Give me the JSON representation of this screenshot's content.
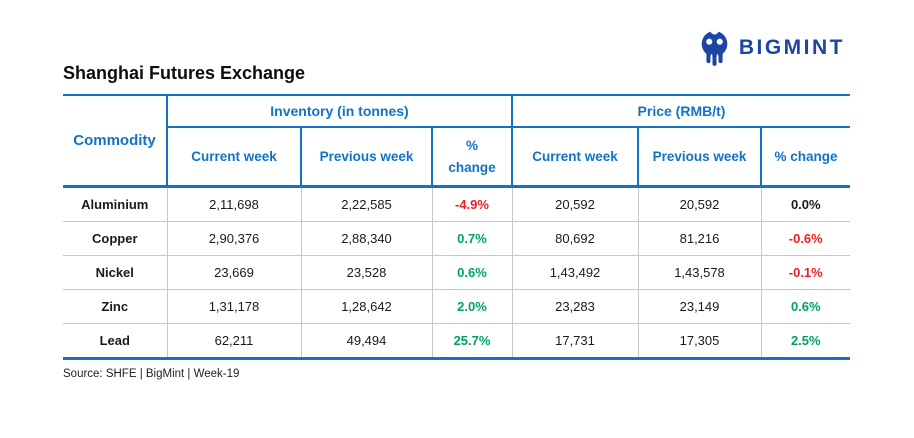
{
  "brand": {
    "name": "BIGMINT"
  },
  "title": "Shanghai Futures Exchange",
  "table": {
    "commodity_header": "Commodity",
    "groups": [
      {
        "label": "Inventory (in tonnes)"
      },
      {
        "label": "Price (RMB/t)"
      }
    ],
    "subheaders": {
      "inventory_current": "Current week",
      "inventory_previous": "Previous week",
      "inventory_change": "%\nchange",
      "price_current": "Current week",
      "price_previous": "Previous week",
      "price_change": "% change"
    },
    "rows": [
      {
        "commodity": "Aluminium",
        "inventory": {
          "current": "2,11,698",
          "previous": "2,22,585",
          "change": "-4.9%",
          "change_tone": "negative"
        },
        "price": {
          "current": "20,592",
          "previous": "20,592",
          "change": "0.0%",
          "change_tone": "neutral"
        }
      },
      {
        "commodity": "Copper",
        "inventory": {
          "current": "2,90,376",
          "previous": "2,88,340",
          "change": "0.7%",
          "change_tone": "positive"
        },
        "price": {
          "current": "80,692",
          "previous": "81,216",
          "change": "-0.6%",
          "change_tone": "negative"
        }
      },
      {
        "commodity": "Nickel",
        "inventory": {
          "current": "23,669",
          "previous": "23,528",
          "change": "0.6%",
          "change_tone": "positive"
        },
        "price": {
          "current": "1,43,492",
          "previous": "1,43,578",
          "change": "-0.1%",
          "change_tone": "negative"
        }
      },
      {
        "commodity": "Zinc",
        "inventory": {
          "current": "1,31,178",
          "previous": "1,28,642",
          "change": "2.0%",
          "change_tone": "positive"
        },
        "price": {
          "current": "23,283",
          "previous": "23,149",
          "change": "0.6%",
          "change_tone": "positive"
        }
      },
      {
        "commodity": "Lead",
        "inventory": {
          "current": "62,211",
          "previous": "49,494",
          "change": "25.7%",
          "change_tone": "positive"
        },
        "price": {
          "current": "17,731",
          "previous": "17,305",
          "change": "2.5%",
          "change_tone": "positive"
        }
      }
    ]
  },
  "footer": {
    "source": "Source: SHFE | BigMint | Week-19"
  },
  "colors": {
    "header_blue": "#1273c6",
    "border_blue": "#1273c6",
    "row_divider_gray": "#c7c7c7",
    "brand_navy": "#1c45a4",
    "positive_green": "#00a45d",
    "negative_red": "#ee1c25",
    "neutral_black": "#1a1a1a"
  },
  "chart_data": {
    "type": "table",
    "title": "Shanghai Futures Exchange",
    "column_groups": [
      "Inventory (in tonnes)",
      "Price (RMB/t)"
    ],
    "columns": [
      "Commodity",
      "Inventory Current week",
      "Inventory Previous week",
      "Inventory % change",
      "Price Current week",
      "Price Previous week",
      "Price % change"
    ],
    "rows": [
      [
        "Aluminium",
        211698,
        222585,
        -4.9,
        20592,
        20592,
        0.0
      ],
      [
        "Copper",
        290376,
        288340,
        0.7,
        80692,
        81216,
        -0.6
      ],
      [
        "Nickel",
        23669,
        23528,
        0.6,
        143492,
        143578,
        -0.1
      ],
      [
        "Zinc",
        131178,
        128642,
        2.0,
        23283,
        23149,
        0.6
      ],
      [
        "Lead",
        62211,
        49494,
        25.7,
        17731,
        17305,
        2.5
      ]
    ],
    "units": {
      "inventory": "tonnes",
      "price": "RMB/t"
    },
    "source": "SHFE | BigMint | Week-19"
  }
}
